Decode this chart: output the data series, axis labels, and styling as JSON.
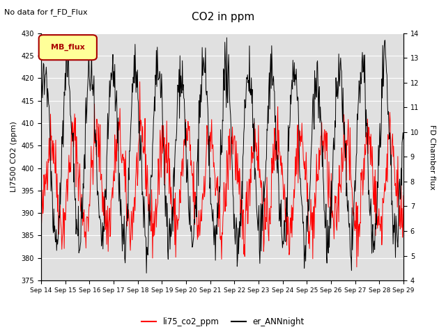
{
  "title": "CO2 in ppm",
  "suptitle": "No data for f_FD_Flux",
  "ylabel_left": "LI7500 CO2 (ppm)",
  "ylabel_right": "FD Chamber flux",
  "ylim_left": [
    375,
    430
  ],
  "ylim_right": [
    4.0,
    14.0
  ],
  "yticks_left": [
    375,
    380,
    385,
    390,
    395,
    400,
    405,
    410,
    415,
    420,
    425,
    430
  ],
  "yticks_right": [
    4.0,
    5.0,
    6.0,
    7.0,
    8.0,
    9.0,
    10.0,
    11.0,
    12.0,
    13.0,
    14.0
  ],
  "xlabels": [
    "Sep 14",
    "Sep 15",
    "Sep 16",
    "Sep 17",
    "Sep 18",
    "Sep 19",
    "Sep 20",
    "Sep 21",
    "Sep 22",
    "Sep 23",
    "Sep 24",
    "Sep 25",
    "Sep 26",
    "Sep 27",
    "Sep 28",
    "Sep 29"
  ],
  "legend_label_MB": "MB_flux",
  "legend_label_red": "li75_co2_ppm",
  "legend_label_black": "er_ANNnight",
  "bg_color": "#e0e0e0",
  "line_color_red": "#ff0000",
  "line_color_black": "#000000",
  "mb_box_facecolor": "#ffff99",
  "mb_box_edgecolor": "#aa0000",
  "mb_text_color": "#aa0000",
  "fig_width": 6.4,
  "fig_height": 4.8,
  "fig_dpi": 100
}
